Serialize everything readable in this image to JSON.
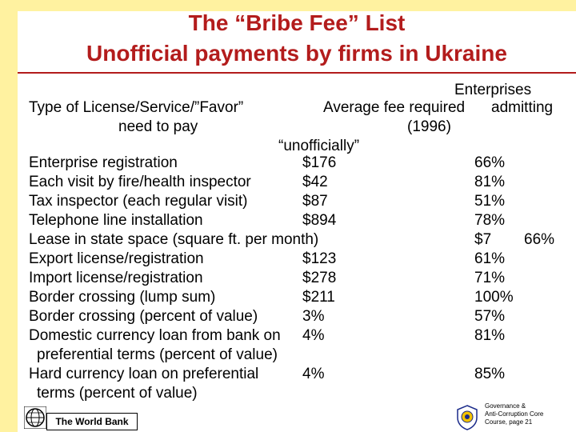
{
  "title_line1": "The “Bribe Fee” List",
  "title_line2": "Unofficial payments by firms in Ukraine",
  "headers": {
    "col1_line1": "Type of License/Service/”Favor”",
    "col1_line2": "need to pay",
    "col2_line1": "Average fee required",
    "col2_line2": "(1996)",
    "col2_line3": "“unofficially”",
    "col3_line1": "Enterprises",
    "col3_line2": "admitting"
  },
  "rows": [
    {
      "label": "Enterprise registration",
      "fee": "$176",
      "pct": "66%"
    },
    {
      "label": "Each visit by fire/health inspector",
      "fee": "$42",
      "pct": "81%"
    },
    {
      "label": "Tax inspector (each regular visit)",
      "fee": "$87",
      "pct": "51%"
    },
    {
      "label": "Telephone line installation",
      "fee": "$894",
      "pct": "78%"
    },
    {
      "label": "Lease in state space (square ft. per month)",
      "fee": "$7",
      "pct": "66%"
    },
    {
      "label": "Export license/registration",
      "fee": "$123",
      "pct": "61%"
    },
    {
      "label": "Import license/registration",
      "fee": "$278",
      "pct": "71%"
    },
    {
      "label": "Border crossing (lump sum)",
      "fee": "$211",
      "pct": "100%"
    },
    {
      "label": "Border crossing (percent of value)",
      "fee": "3%",
      "pct": "57%"
    },
    {
      "label": "Domestic currency loan from bank on",
      "label2": "preferential terms (percent of value)",
      "fee": "4%",
      "pct": "81%"
    },
    {
      "label": "Hard currency loan on preferential",
      "label2": "terms (percent of value)",
      "fee": "4%",
      "pct": "85%"
    }
  ],
  "footer": {
    "world_bank": "The World Bank",
    "gac_line1": "Governance &",
    "gac_line2": "Anti-Corruption Core",
    "gac_line3": "Course, page 21"
  },
  "colors": {
    "title": "#b31c1c",
    "sidebar": "#fff2a0"
  }
}
